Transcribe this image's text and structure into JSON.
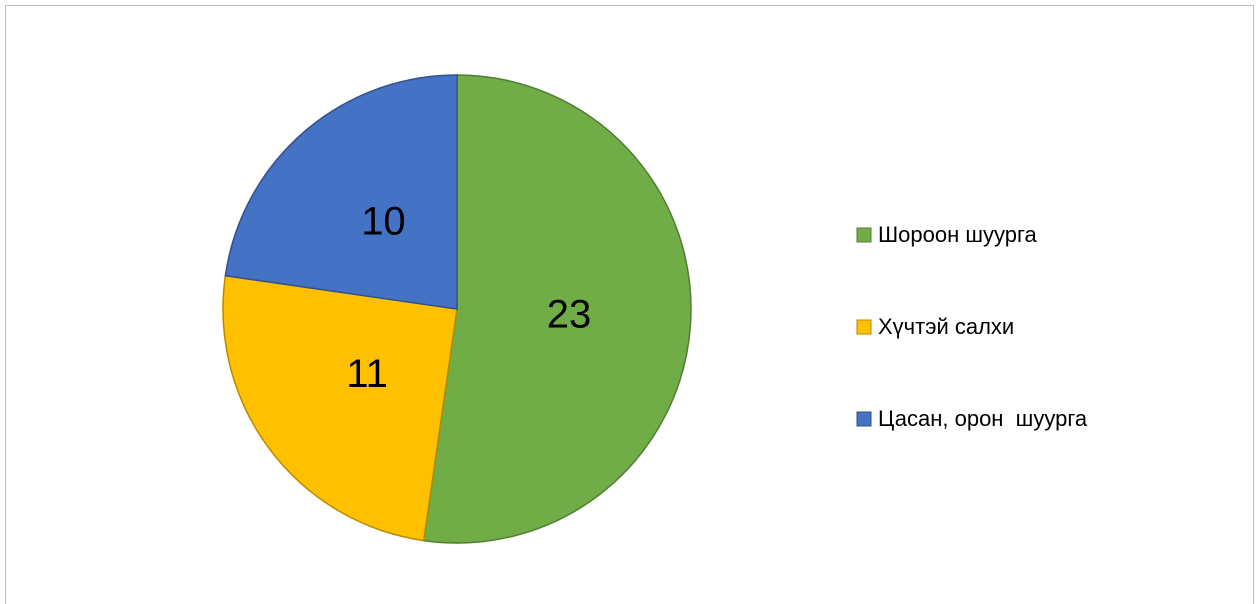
{
  "chart_data": {
    "type": "pie",
    "categories": [
      "Шороон шуурга",
      "Хүчтэй салхи",
      "Цасан, орон  шуурга"
    ],
    "values": [
      23,
      11,
      10
    ],
    "colors": [
      "#70ad47",
      "#ffc000",
      "#4472c4"
    ],
    "legend": "right"
  }
}
